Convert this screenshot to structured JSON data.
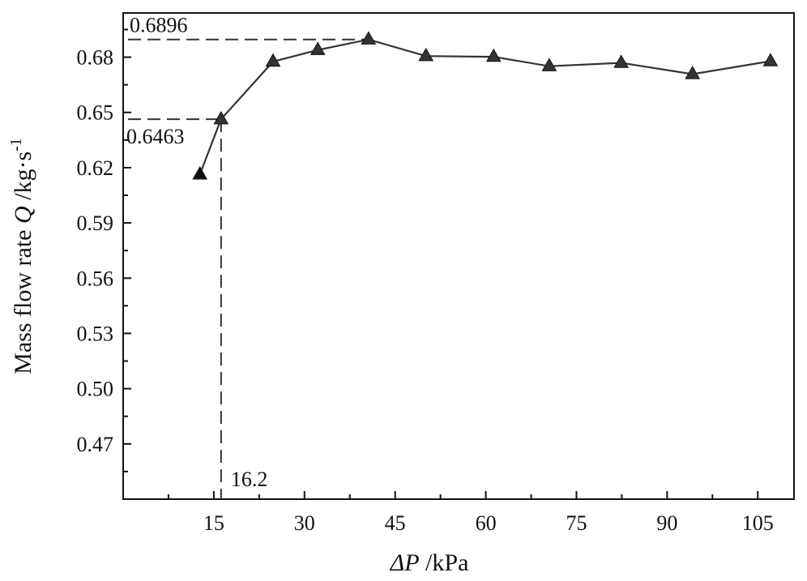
{
  "chart_data": {
    "type": "line",
    "xlabel_prefix": "Δ",
    "xlabel_var": "P",
    "xlabel_unit": " /kPa",
    "ylabel_text": "Mass flow rate ",
    "ylabel_var": "Q",
    "ylabel_unit": " /kg·s",
    "ylabel_sup": "-1",
    "xlim": [
      0,
      111
    ],
    "ylim": [
      0.44,
      0.704
    ],
    "x_ticks": [
      15,
      30,
      45,
      60,
      75,
      90,
      105
    ],
    "x_tick_labels": [
      "15",
      "30",
      "45",
      "60",
      "75",
      "90",
      "105"
    ],
    "y_ticks": [
      0.47,
      0.5,
      0.53,
      0.56,
      0.59,
      0.62,
      0.65,
      0.68
    ],
    "y_tick_labels": [
      "0.47",
      "0.50",
      "0.53",
      "0.56",
      "0.59",
      "0.62",
      "0.65",
      "0.68"
    ],
    "grid": false,
    "series": [
      {
        "marker": "triangle",
        "color": "#333333",
        "x": [
          12.7,
          16.2,
          24.8,
          32.2,
          40.6,
          50.1,
          61.3,
          70.5,
          82.4,
          94.2,
          107.1
        ],
        "y": [
          0.6163,
          0.6463,
          0.6776,
          0.6839,
          0.6896,
          0.6806,
          0.6802,
          0.6751,
          0.6769,
          0.6708,
          0.6778
        ]
      }
    ],
    "annotations": [
      {
        "label": "0.6896",
        "x": 40.6,
        "y": 0.6896,
        "kind": "y-reference"
      },
      {
        "label": "0.6463",
        "x": 16.2,
        "y": 0.6463,
        "kind": "y-reference"
      },
      {
        "label": "16.2",
        "x": 16.2,
        "y": 0.6463,
        "kind": "x-reference"
      }
    ]
  }
}
